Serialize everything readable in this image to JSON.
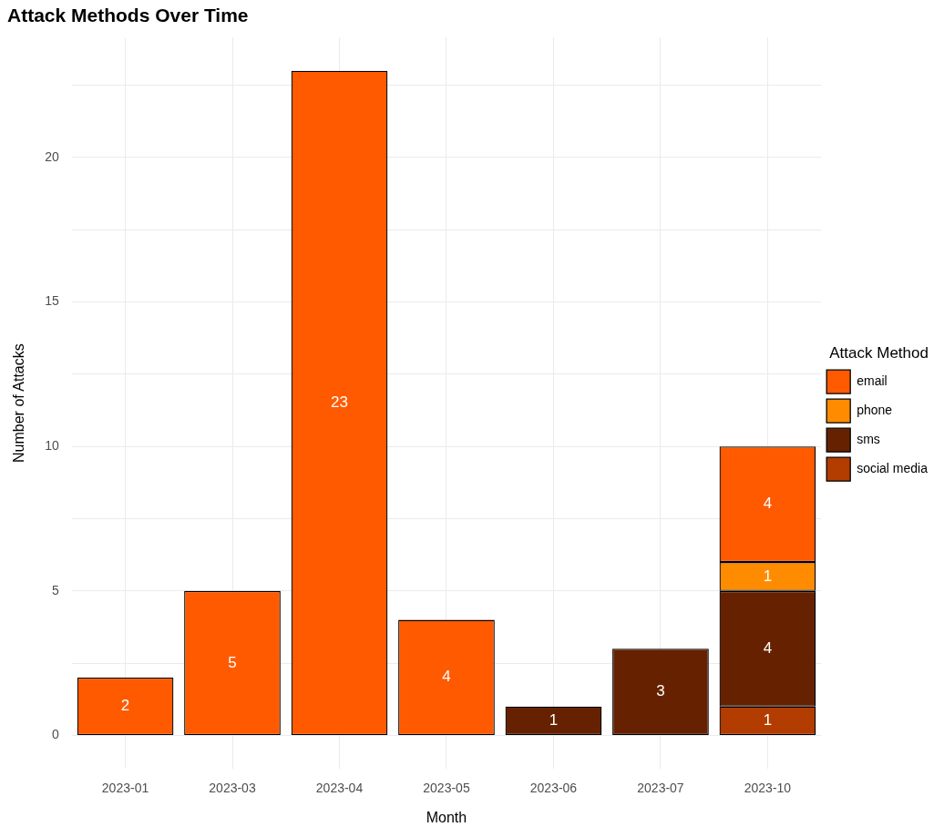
{
  "chart_data": {
    "type": "bar",
    "title": "Attack Methods Over Time",
    "xlabel": "Month",
    "ylabel": "Number of Attacks",
    "legend_title": "Attack Method",
    "categories": [
      "2023-01",
      "2023-03",
      "2023-04",
      "2023-05",
      "2023-06",
      "2023-07",
      "2023-10"
    ],
    "series": [
      {
        "name": "social media",
        "color": "#b33c00",
        "values": [
          null,
          null,
          null,
          null,
          null,
          null,
          1
        ]
      },
      {
        "name": "sms",
        "color": "#662200",
        "values": [
          null,
          null,
          null,
          null,
          1,
          3,
          4
        ]
      },
      {
        "name": "phone",
        "color": "#ff8c00",
        "values": [
          null,
          null,
          null,
          null,
          null,
          null,
          1
        ]
      },
      {
        "name": "email",
        "color": "#ff5a00",
        "values": [
          2,
          5,
          23,
          4,
          null,
          null,
          4
        ]
      }
    ],
    "stacked": true,
    "ylim": [
      -1.15,
      24.15
    ],
    "yticks": [
      0,
      {
        "value": 2.5,
        "label": null
      },
      5,
      {
        "value": 7.5,
        "label": null
      },
      10,
      {
        "value": 12.5,
        "label": null
      },
      15,
      {
        "value": 17.5,
        "label": null
      },
      20,
      {
        "value": 22.5,
        "label": null
      }
    ],
    "grid": true,
    "legend": "right",
    "data_labels": true
  }
}
